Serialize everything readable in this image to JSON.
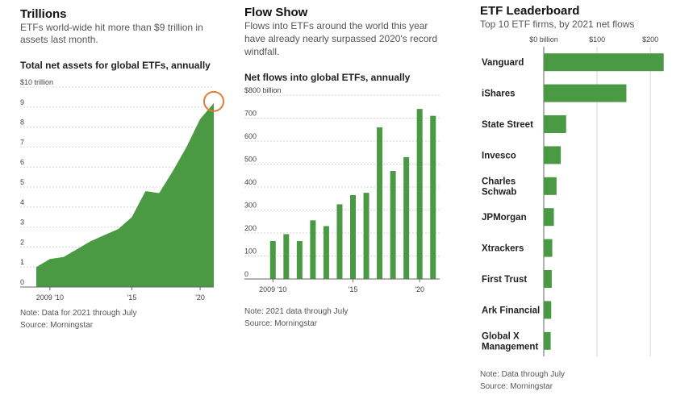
{
  "panels": {
    "trillions": {
      "title": "Trillions",
      "desc_line1": "ETFs world-wide hit more than $9 trillion in",
      "desc_line2": "assets last month.",
      "subtitle": "Total net assets for global ETFs, annually",
      "note": "Note: Data for 2021 through July",
      "source": "Source: Morningstar"
    },
    "flow": {
      "title": "Flow Show",
      "desc_line1": "Flows into ETFs around the world this year",
      "desc_line2": "have already nearly surpassed 2020's record",
      "desc_line3": "windfall.",
      "subtitle": "Net flows into global ETFs, annually",
      "note": "Note: 2021 data through July",
      "source": "Source: Morningstar"
    },
    "leaderboard": {
      "title": "ETF Leaderboard",
      "desc": "Top 10 ETF firms, by 2021 net flows",
      "note": "Note: Data through July",
      "source": "Source: Morningstar"
    }
  },
  "chart_data": [
    {
      "type": "area",
      "x": [
        2008,
        2009,
        2010,
        2011,
        2012,
        2013,
        2014,
        2015,
        2016,
        2017,
        2018,
        2019,
        2020,
        2021
      ],
      "values": [
        1.0,
        1.4,
        1.5,
        1.9,
        2.3,
        2.6,
        2.9,
        3.5,
        4.8,
        4.7,
        5.8,
        7.0,
        8.4,
        9.2
      ],
      "ylim": [
        0,
        10
      ],
      "y_ticks": [
        {
          "value": 0,
          "label": "0"
        },
        {
          "value": 1,
          "label": "1"
        },
        {
          "value": 2,
          "label": "2"
        },
        {
          "value": 3,
          "label": "3"
        },
        {
          "value": 4,
          "label": "4"
        },
        {
          "value": 5,
          "label": "5"
        },
        {
          "value": 6,
          "label": "6"
        },
        {
          "value": 7,
          "label": "7"
        },
        {
          "value": 8,
          "label": "8"
        },
        {
          "value": 9,
          "label": "9"
        },
        {
          "value": 10,
          "label": "$10 trillion"
        }
      ],
      "x_ticks": [
        {
          "value": 2009,
          "label": "2009 '10"
        },
        {
          "value": 2015,
          "label": "'15"
        },
        {
          "value": 2020,
          "label": "'20"
        }
      ],
      "highlight_year": 2021,
      "fill_color": "#4a9a43",
      "highlight_color": "#e07b39",
      "grid": true
    },
    {
      "type": "bar",
      "categories": [
        "2009",
        "2010",
        "2011",
        "2012",
        "2013",
        "2014",
        "2015",
        "2016",
        "2017",
        "2018",
        "2019",
        "2020",
        "2021"
      ],
      "values": [
        165,
        195,
        165,
        255,
        230,
        325,
        365,
        375,
        660,
        470,
        530,
        740,
        710
      ],
      "ylim": [
        0,
        800
      ],
      "y_ticks": [
        {
          "value": 0,
          "label": "0"
        },
        {
          "value": 100,
          "label": "100"
        },
        {
          "value": 200,
          "label": "200"
        },
        {
          "value": 300,
          "label": "300"
        },
        {
          "value": 400,
          "label": "400"
        },
        {
          "value": 500,
          "label": "500"
        },
        {
          "value": 600,
          "label": "600"
        },
        {
          "value": 700,
          "label": "700"
        },
        {
          "value": 800,
          "label": "$800 billion"
        }
      ],
      "x_ticks": [
        {
          "value": "2009",
          "label": "2009 '10"
        },
        {
          "value": "2015",
          "label": "'15"
        },
        {
          "value": "2020",
          "label": "'20"
        }
      ],
      "bar_color": "#4a9a43",
      "grid": true
    },
    {
      "type": "bar",
      "orientation": "horizontal",
      "categories": [
        "Vanguard",
        "iShares",
        "State Street",
        "Invesco",
        "Charles Schwab",
        "JPMorgan",
        "Xtrackers",
        "First Trust",
        "Ark Financial",
        "Global X Management"
      ],
      "category_lines": [
        [
          "Vanguard"
        ],
        [
          "iShares"
        ],
        [
          "State Street"
        ],
        [
          "Invesco"
        ],
        [
          "Charles",
          "Schwab"
        ],
        [
          "JPMorgan"
        ],
        [
          "Xtrackers"
        ],
        [
          "First Trust"
        ],
        [
          "Ark Financial"
        ],
        [
          "Global X",
          "Management"
        ]
      ],
      "values": [
        225,
        155,
        42,
        32,
        24,
        19,
        16,
        15,
        14,
        13
      ],
      "xlim": [
        0,
        230
      ],
      "x_ticks": [
        {
          "value": 0,
          "label": "$0 billion"
        },
        {
          "value": 100,
          "label": "$100"
        },
        {
          "value": 200,
          "label": "$200"
        }
      ],
      "bar_color": "#4a9a43",
      "grid": true
    }
  ]
}
